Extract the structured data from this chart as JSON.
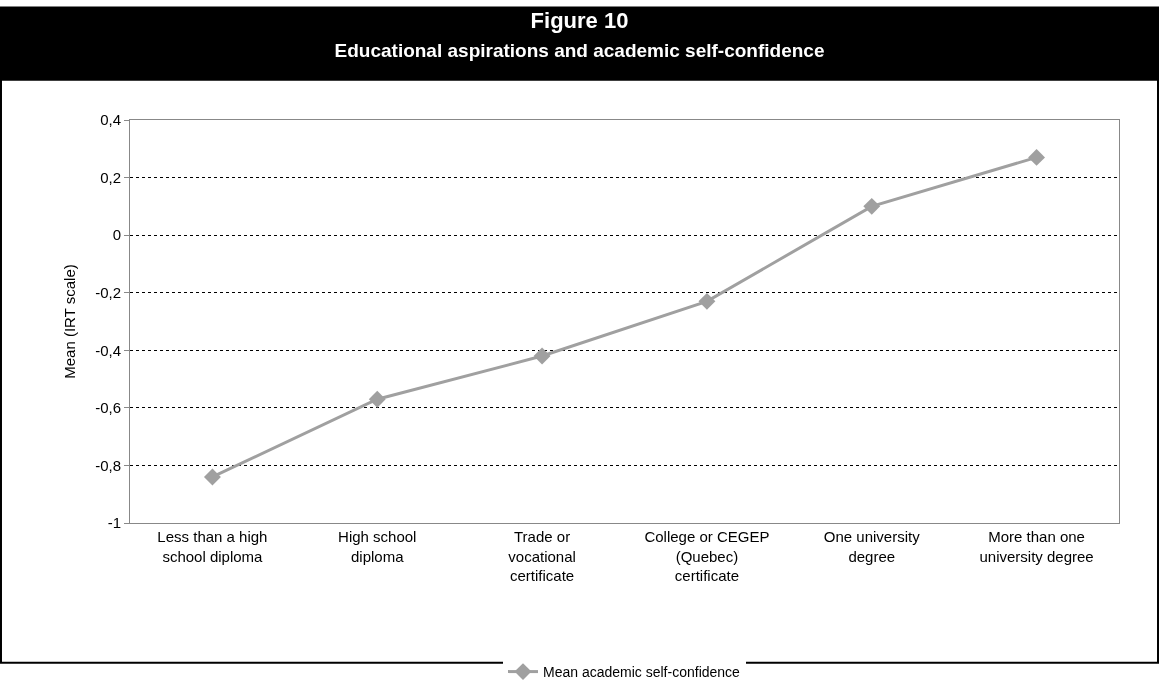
{
  "chart_data": {
    "type": "line",
    "title": "Figure 10",
    "subtitle": "Educational aspirations and academic self-confidence",
    "ylabel": "Mean (IRT scale)",
    "categories": [
      "Less than a high school diploma",
      "High school diploma",
      "Trade or vocational certificate",
      "College or CEGEP (Quebec) certificate",
      "One university degree",
      "More than one university degree"
    ],
    "series": [
      {
        "name": "Mean academic self-confidence",
        "color": "#a0a0a0",
        "values": [
          -0.84,
          -0.57,
          -0.42,
          -0.23,
          0.1,
          0.27
        ]
      }
    ],
    "ylim": [
      -1,
      0.4
    ],
    "yticks": [
      -1,
      {
        "value": -0.8,
        "label": "-0,8"
      },
      {
        "value": -0.6,
        "label": "-0,6"
      },
      {
        "value": -0.4,
        "label": "-0,4"
      },
      {
        "value": -0.2,
        "label": "-0,2"
      },
      0,
      {
        "value": 0.2,
        "label": "0,2"
      },
      {
        "value": 0.4,
        "label": "0,4"
      }
    ],
    "grid": "y",
    "legend": "bottom",
    "marker": "diamond",
    "line_style": "solid"
  }
}
